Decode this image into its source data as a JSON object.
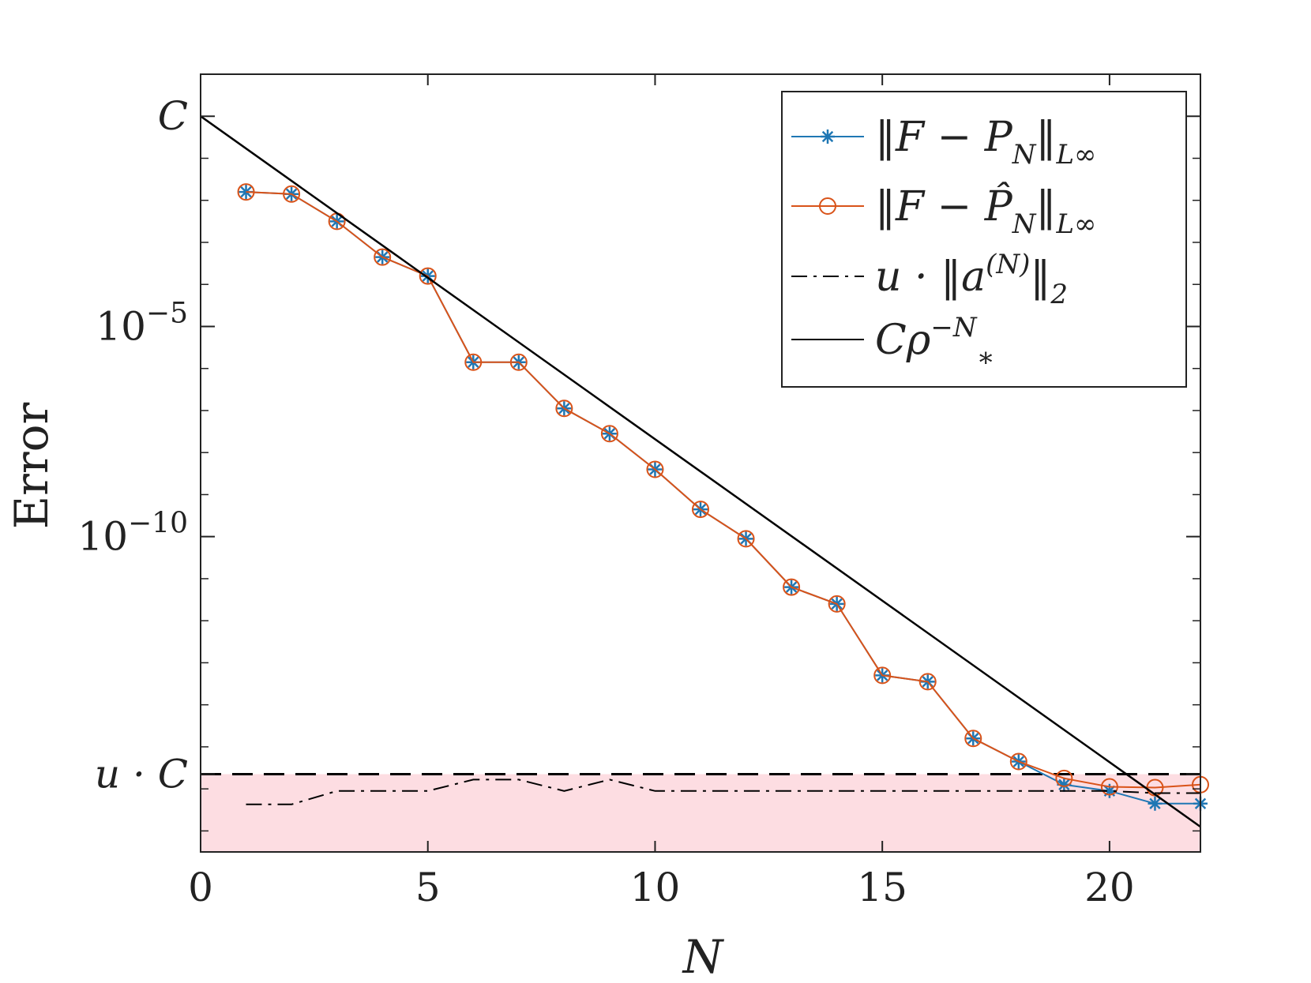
{
  "chart_data": {
    "type": "line",
    "xlabel": "N",
    "ylabel": "Error",
    "xlim": [
      0,
      22
    ],
    "ylim_log10": [
      -17.5,
      1.0
    ],
    "y_scale": "log",
    "x_ticks": [
      0,
      5,
      10,
      15,
      20
    ],
    "x_tick_labels": [
      "0",
      "5",
      "10",
      "15",
      "20"
    ],
    "y_ticks": [
      {
        "value_log10": 0.0,
        "label": "C"
      },
      {
        "value_log10": -5.0,
        "label": "10−5"
      },
      {
        "value_log10": -10.0,
        "label": "10−10"
      },
      {
        "value_log10": -15.65,
        "label": "u · C"
      }
    ],
    "legend_position": "top-right",
    "grid": false,
    "series": [
      {
        "name": "‖F − P_N‖_L∞",
        "color": "#1f77b4",
        "marker": "asterisk",
        "x": [
          1,
          2,
          3,
          4,
          5,
          6,
          7,
          8,
          9,
          10,
          11,
          12,
          13,
          14,
          15,
          16,
          17,
          18,
          19,
          20,
          21,
          22
        ],
        "log10_y": [
          -1.8,
          -1.85,
          -2.5,
          -3.35,
          -3.8,
          -5.85,
          -5.85,
          -6.95,
          -7.55,
          -8.4,
          -9.35,
          -10.05,
          -11.2,
          -11.6,
          -13.3,
          -13.45,
          -14.8,
          -15.35,
          -15.9,
          -16.05,
          -16.35,
          -16.35
        ]
      },
      {
        "name": "‖F − P̂_N‖_L∞",
        "color": "#d95319",
        "marker": "circle",
        "x": [
          1,
          2,
          3,
          4,
          5,
          6,
          7,
          8,
          9,
          10,
          11,
          12,
          13,
          14,
          15,
          16,
          17,
          18,
          19,
          20,
          21,
          22
        ],
        "log10_y": [
          -1.8,
          -1.85,
          -2.5,
          -3.35,
          -3.8,
          -5.85,
          -5.85,
          -6.95,
          -7.55,
          -8.4,
          -9.35,
          -10.05,
          -11.2,
          -11.6,
          -13.3,
          -13.45,
          -14.8,
          -15.35,
          -15.75,
          -15.95,
          -15.97,
          -15.9
        ]
      },
      {
        "name": "u · ‖a^(N)‖₂",
        "color": "#000000",
        "style": "dash-dot",
        "x": [
          1,
          2,
          3,
          4,
          5,
          6,
          7,
          8,
          9,
          10,
          11,
          12,
          13,
          14,
          15,
          16,
          17,
          18,
          19,
          20,
          21,
          22
        ],
        "log10_y": [
          -16.37,
          -16.37,
          -16.05,
          -16.05,
          -16.05,
          -15.78,
          -15.78,
          -16.05,
          -15.78,
          -16.05,
          -16.05,
          -16.05,
          -16.05,
          -16.05,
          -16.05,
          -16.05,
          -16.05,
          -16.05,
          -16.05,
          -16.05,
          -16.1,
          -16.1
        ]
      },
      {
        "name": "Cρ₊^−N",
        "color": "#000000",
        "style": "solid",
        "x": [
          0,
          22
        ],
        "log10_y": [
          0.0,
          -16.9
        ]
      }
    ],
    "reference_lines": [
      {
        "label": "u · C",
        "log10_y": -15.65,
        "style": "dashed",
        "color": "#000000"
      }
    ],
    "shaded_region": {
      "from_log10_y": -17.5,
      "to_log10_y": -15.65,
      "color": "#fddde2"
    },
    "legend": [
      {
        "text_main": "‖F − P",
        "text_sub": "N",
        "text_tail": "‖",
        "text_tail_sub": "L∞"
      },
      {
        "text_main": "‖F − P̂",
        "text_sub": "N",
        "text_tail": "‖",
        "text_tail_sub": "L∞"
      },
      {
        "text_main": "u · ‖a",
        "text_sup": "(N)",
        "text_tail": "‖",
        "text_tail_sub": "2"
      },
      {
        "text_main": "Cρ",
        "text_sup": "−N",
        "text_sub": "∗"
      }
    ]
  }
}
